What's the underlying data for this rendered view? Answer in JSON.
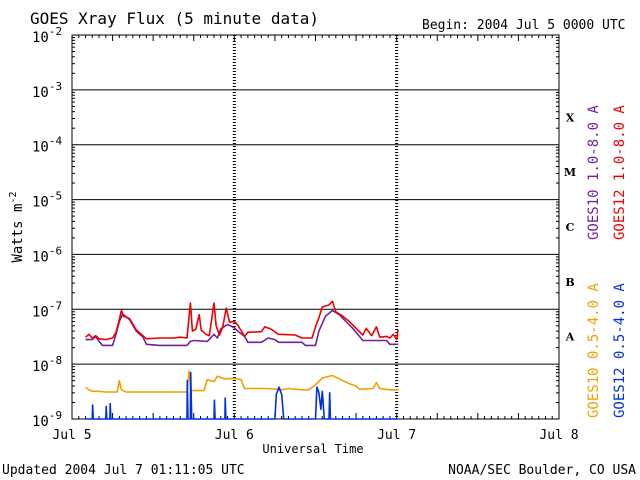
{
  "header": {
    "title": "GOES Xray Flux (5 minute data)",
    "begin": "Begin:  2004 Jul 5 0000 UTC"
  },
  "footer": {
    "updated": "Updated 2004 Jul  7 01:11:05 UTC",
    "credit": "NOAA/SEC Boulder, CO USA"
  },
  "chart_data": {
    "type": "line",
    "title": "GOES Xray Flux (5 minute data)",
    "xlabel": "Universal Time",
    "ylabel": "Watts m",
    "ylabel_superscript": "-2",
    "yscale": "log",
    "ylim": [
      1e-09,
      0.01
    ],
    "xlim": [
      0,
      72
    ],
    "x_units": "hours since 2004 Jul 5 0000 UTC",
    "x_ticks": [
      {
        "x": 0,
        "label": "Jul 5"
      },
      {
        "x": 24,
        "label": "Jul 6"
      },
      {
        "x": 48,
        "label": "Jul 7"
      },
      {
        "x": 72,
        "label": "Jul 8"
      }
    ],
    "y_ticks": [
      {
        "exp": -2,
        "base": "10",
        "sup": "-2"
      },
      {
        "exp": -3,
        "base": "10",
        "sup": "-3"
      },
      {
        "exp": -4,
        "base": "10",
        "sup": "-4"
      },
      {
        "exp": -5,
        "base": "10",
        "sup": "-5"
      },
      {
        "exp": -6,
        "base": "10",
        "sup": "-6"
      },
      {
        "exp": -7,
        "base": "10",
        "sup": "-7"
      },
      {
        "exp": -8,
        "base": "10",
        "sup": "-8"
      },
      {
        "exp": -9,
        "base": "10",
        "sup": "-9"
      }
    ],
    "flare_classes": [
      {
        "label": "X",
        "exp": -3.5
      },
      {
        "label": "M",
        "exp": -4.5
      },
      {
        "label": "C",
        "exp": -5.5
      },
      {
        "label": "B",
        "exp": -6.5
      },
      {
        "label": "A",
        "exp": -7.5
      }
    ],
    "grid": "horizontal lines at each decade from 1e-8 to 1e-3",
    "legend_position": "right, vertical text",
    "series": [
      {
        "name": "GOES10 1.0-8.0 A",
        "color": "#7020a0",
        "points": [
          [
            2,
            2.8e-08
          ],
          [
            3,
            2.8e-08
          ],
          [
            3.5,
            3.2e-08
          ],
          [
            4,
            2.6e-08
          ],
          [
            4.5,
            2.2e-08
          ],
          [
            6,
            2.2e-08
          ],
          [
            6.5,
            3.5e-08
          ],
          [
            7,
            6e-08
          ],
          [
            7.5,
            8.2e-08
          ],
          [
            8.5,
            6.5e-08
          ],
          [
            9.5,
            4e-08
          ],
          [
            10.5,
            3.1e-08
          ],
          [
            11,
            2.3e-08
          ],
          [
            13,
            2.2e-08
          ],
          [
            17,
            2.2e-08
          ],
          [
            17.5,
            2.6e-08
          ],
          [
            18,
            2.7e-08
          ],
          [
            20,
            2.6e-08
          ],
          [
            21,
            3.5e-08
          ],
          [
            21.5,
            3e-08
          ],
          [
            22,
            4.4e-08
          ],
          [
            23,
            5.3e-08
          ],
          [
            24,
            4.6e-08
          ],
          [
            24.5,
            4e-08
          ],
          [
            25.5,
            3.2e-08
          ],
          [
            26,
            2.5e-08
          ],
          [
            28,
            2.5e-08
          ],
          [
            29,
            3e-08
          ],
          [
            30,
            2.8e-08
          ],
          [
            30.5,
            2.5e-08
          ],
          [
            34,
            2.5e-08
          ],
          [
            34.5,
            2.2e-08
          ],
          [
            36,
            2.2e-08
          ],
          [
            36.5,
            4e-08
          ],
          [
            37.5,
            7.5e-08
          ],
          [
            38.5,
            9.5e-08
          ],
          [
            39.5,
            8e-08
          ],
          [
            40.5,
            6e-08
          ],
          [
            41.5,
            4.5e-08
          ],
          [
            42.5,
            3.2e-08
          ],
          [
            43,
            2.7e-08
          ],
          [
            44,
            2.7e-08
          ],
          [
            45,
            2.7e-08
          ],
          [
            46.5,
            2.7e-08
          ],
          [
            47,
            2.3e-08
          ],
          [
            48.2,
            2.3e-08
          ]
        ]
      },
      {
        "name": "GOES12 1.0-8.0 A",
        "color": "#ee0000",
        "points": [
          [
            2,
            3.1e-08
          ],
          [
            2.5,
            3.5e-08
          ],
          [
            3,
            3e-08
          ],
          [
            3.5,
            3.3e-08
          ],
          [
            4,
            2.9e-08
          ],
          [
            5,
            2.8e-08
          ],
          [
            6,
            3e-08
          ],
          [
            6.5,
            3.8e-08
          ],
          [
            7,
            6.5e-08
          ],
          [
            7.3,
            9.5e-08
          ],
          [
            7.6,
            7.5e-08
          ],
          [
            8.5,
            6.8e-08
          ],
          [
            9.5,
            4.2e-08
          ],
          [
            10.5,
            3.3e-08
          ],
          [
            11,
            2.9e-08
          ],
          [
            13,
            3e-08
          ],
          [
            15,
            3e-08
          ],
          [
            16,
            3.1e-08
          ],
          [
            17,
            3e-08
          ],
          [
            17.5,
            1.3e-07
          ],
          [
            17.8,
            4e-08
          ],
          [
            18.3,
            4.3e-08
          ],
          [
            18.8,
            8e-08
          ],
          [
            19.1,
            4.2e-08
          ],
          [
            19.8,
            3.5e-08
          ],
          [
            20.3,
            3.3e-08
          ],
          [
            21,
            1.3e-07
          ],
          [
            21.3,
            5e-08
          ],
          [
            21.8,
            3.4e-08
          ],
          [
            22.3,
            4.8e-08
          ],
          [
            22.8,
            1.05e-07
          ],
          [
            23.3,
            5.8e-08
          ],
          [
            24,
            6e-08
          ],
          [
            24.5,
            5.2e-08
          ],
          [
            25.5,
            3.2e-08
          ],
          [
            26,
            3.8e-08
          ],
          [
            28,
            3.9e-08
          ],
          [
            28.5,
            4.8e-08
          ],
          [
            29.5,
            4.3e-08
          ],
          [
            30.5,
            3.5e-08
          ],
          [
            33,
            3.4e-08
          ],
          [
            34,
            3e-08
          ],
          [
            35.5,
            3e-08
          ],
          [
            36,
            4.8e-08
          ],
          [
            36.5,
            7e-08
          ],
          [
            37,
            1.1e-07
          ],
          [
            38,
            1.2e-07
          ],
          [
            38.5,
            1.4e-07
          ],
          [
            39,
            9e-08
          ],
          [
            40,
            7.5e-08
          ],
          [
            41,
            6e-08
          ],
          [
            42,
            4.5e-08
          ],
          [
            43,
            3.4e-08
          ],
          [
            43.5,
            4.5e-08
          ],
          [
            44.3,
            3.3e-08
          ],
          [
            45,
            4.8e-08
          ],
          [
            45.5,
            3.1e-08
          ],
          [
            46.5,
            3.2e-08
          ],
          [
            47,
            3e-08
          ],
          [
            47.5,
            3.5e-08
          ],
          [
            48,
            2.8e-08
          ],
          [
            48.2,
            4.2e-08
          ]
        ]
      },
      {
        "name": "GOES10 0.5-4.0 A",
        "color": "#f0a000",
        "points": [
          [
            2,
            3.8e-09
          ],
          [
            2.5,
            3.4e-09
          ],
          [
            3,
            3.2e-09
          ],
          [
            4,
            3.2e-09
          ],
          [
            5,
            3.1e-09
          ],
          [
            6,
            3.1e-09
          ],
          [
            6.7,
            3.1e-09
          ],
          [
            7,
            5e-09
          ],
          [
            7.3,
            3.4e-09
          ],
          [
            8,
            3.1e-09
          ],
          [
            12,
            3.1e-09
          ],
          [
            17,
            3.1e-09
          ],
          [
            17.3,
            7.5e-09
          ],
          [
            17.6,
            3.3e-09
          ],
          [
            19.5,
            3.3e-09
          ],
          [
            20,
            5.2e-09
          ],
          [
            21,
            4.8e-09
          ],
          [
            21.5,
            6e-09
          ],
          [
            22.5,
            5.4e-09
          ],
          [
            24,
            5.5e-09
          ],
          [
            25,
            5.2e-09
          ],
          [
            25.5,
            3.6e-09
          ],
          [
            29,
            3.6e-09
          ],
          [
            31,
            3.4e-09
          ],
          [
            32,
            3.6e-09
          ],
          [
            34,
            3.4e-09
          ],
          [
            35,
            3.4e-09
          ],
          [
            36,
            4.2e-09
          ],
          [
            37,
            5.6e-09
          ],
          [
            38.5,
            6.2e-09
          ],
          [
            39.5,
            5.4e-09
          ],
          [
            41,
            4.4e-09
          ],
          [
            42,
            4e-09
          ],
          [
            42.5,
            3.5e-09
          ],
          [
            44.5,
            3.6e-09
          ],
          [
            45,
            4.6e-09
          ],
          [
            45.5,
            3.6e-09
          ],
          [
            47,
            3.4e-09
          ],
          [
            48.2,
            3.4e-09
          ]
        ]
      },
      {
        "name": "GOES12 0.5-4.0 A",
        "color": "#0030e0",
        "points": [
          [
            2,
            1e-09
          ],
          [
            3,
            1e-09
          ],
          [
            3.05,
            1.8e-09
          ],
          [
            3.15,
            1e-09
          ],
          [
            5,
            1e-09
          ],
          [
            5.05,
            1.7e-09
          ],
          [
            5.15,
            1e-09
          ],
          [
            5.6,
            1e-09
          ],
          [
            5.65,
            1.9e-09
          ],
          [
            5.75,
            1e-09
          ],
          [
            17,
            1e-09
          ],
          [
            17.05,
            5e-09
          ],
          [
            17.15,
            1e-09
          ],
          [
            17.5,
            1e-09
          ],
          [
            17.55,
            7e-09
          ],
          [
            17.7,
            1e-09
          ],
          [
            21,
            1e-09
          ],
          [
            21.05,
            2.2e-09
          ],
          [
            21.15,
            1e-09
          ],
          [
            22.6,
            1e-09
          ],
          [
            22.65,
            2.4e-09
          ],
          [
            22.75,
            1e-09
          ],
          [
            30,
            1e-09
          ],
          [
            30.2,
            2.8e-09
          ],
          [
            30.6,
            3.8e-09
          ],
          [
            31,
            2.8e-09
          ],
          [
            31.3,
            1e-09
          ],
          [
            36,
            1e-09
          ],
          [
            36.2,
            3.8e-09
          ],
          [
            36.5,
            3e-09
          ],
          [
            36.8,
            1.5e-09
          ],
          [
            37,
            3.2e-09
          ],
          [
            37.3,
            1e-09
          ],
          [
            38,
            1e-09
          ],
          [
            38.1,
            3e-09
          ],
          [
            38.2,
            1e-09
          ],
          [
            48.2,
            1e-09
          ]
        ]
      }
    ]
  }
}
